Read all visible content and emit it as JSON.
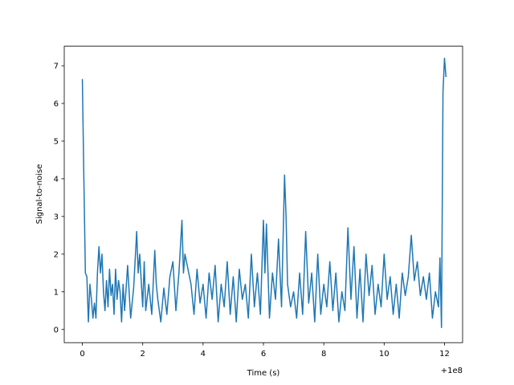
{
  "chart_data": {
    "type": "line",
    "xlabel": "Time (s)",
    "ylabel": "Signal-to-noise",
    "x_offset_label": "+1e8",
    "xlim": [
      -0.6,
      12.6
    ],
    "ylim": [
      -0.35,
      7.52
    ],
    "xticks": [
      0,
      2,
      4,
      6,
      8,
      10,
      12
    ],
    "yticks": [
      0,
      1,
      2,
      3,
      4,
      5,
      6,
      7
    ],
    "series": [
      {
        "color": "#1f77b4",
        "x": [
          0,
          0.05,
          0.1,
          0.15,
          0.2,
          0.25,
          0.3,
          0.35,
          0.4,
          0.45,
          0.5,
          0.55,
          0.6,
          0.65,
          0.7,
          0.75,
          0.8,
          0.85,
          0.9,
          0.95,
          1.0,
          1.05,
          1.1,
          1.15,
          1.2,
          1.25,
          1.3,
          1.35,
          1.4,
          1.5,
          1.6,
          1.7,
          1.8,
          1.85,
          1.9,
          2.0,
          2.05,
          2.1,
          2.2,
          2.3,
          2.4,
          2.45,
          2.5,
          2.6,
          2.7,
          2.8,
          2.9,
          3.0,
          3.1,
          3.2,
          3.3,
          3.35,
          3.4,
          3.5,
          3.6,
          3.7,
          3.8,
          3.9,
          4.0,
          4.1,
          4.2,
          4.3,
          4.4,
          4.5,
          4.6,
          4.7,
          4.8,
          4.9,
          5.0,
          5.1,
          5.2,
          5.3,
          5.4,
          5.5,
          5.6,
          5.7,
          5.8,
          5.9,
          6.0,
          6.05,
          6.1,
          6.2,
          6.3,
          6.4,
          6.5,
          6.6,
          6.7,
          6.75,
          6.8,
          6.9,
          7.0,
          7.1,
          7.2,
          7.3,
          7.4,
          7.5,
          7.6,
          7.7,
          7.8,
          7.9,
          8.0,
          8.1,
          8.2,
          8.3,
          8.4,
          8.5,
          8.6,
          8.7,
          8.8,
          8.9,
          9.0,
          9.1,
          9.2,
          9.3,
          9.4,
          9.5,
          9.6,
          9.7,
          9.8,
          9.9,
          10.0,
          10.1,
          10.2,
          10.3,
          10.4,
          10.5,
          10.6,
          10.7,
          10.8,
          10.9,
          11.0,
          11.1,
          11.2,
          11.3,
          11.4,
          11.5,
          11.6,
          11.7,
          11.8,
          11.85,
          11.9,
          11.95,
          12.0,
          12.05
        ],
        "values": [
          6.65,
          4,
          1.5,
          1.4,
          0.2,
          1.2,
          0.8,
          0.3,
          0.7,
          0.3,
          1.5,
          2.2,
          1.5,
          2.0,
          1.0,
          0.5,
          1.3,
          0.6,
          1.6,
          0.9,
          1.2,
          0.4,
          1.6,
          0.8,
          1.3,
          1.0,
          0.2,
          1.2,
          0.5,
          1.7,
          0.3,
          1.1,
          2.6,
          1.5,
          2.0,
          0.6,
          1.8,
          0.5,
          1.2,
          0.4,
          2.1,
          1.2,
          0.8,
          0.2,
          1.1,
          0.4,
          1.4,
          1.8,
          0.5,
          1.5,
          2.9,
          1.5,
          2.0,
          1.6,
          1.2,
          0.4,
          1.6,
          0.7,
          1.2,
          0.3,
          1.5,
          0.8,
          1.7,
          0.2,
          1.2,
          0.6,
          1.8,
          0.4,
          1.4,
          0.2,
          1.6,
          0.8,
          1.2,
          0.3,
          2.0,
          0.6,
          1.5,
          0.4,
          2.9,
          1.5,
          2.8,
          0.3,
          1.5,
          0.8,
          2.4,
          0.6,
          4.1,
          3.0,
          1.2,
          0.6,
          1.0,
          0.3,
          1.5,
          0.4,
          2.6,
          0.7,
          1.5,
          0.2,
          2.0,
          0.4,
          1.2,
          0.6,
          1.8,
          0.5,
          1.5,
          0.2,
          1.0,
          0.5,
          2.7,
          0.8,
          2.2,
          0.3,
          1.6,
          0.2,
          2.0,
          0.9,
          1.7,
          0.4,
          1.2,
          0.6,
          2.0,
          0.8,
          1.4,
          0.4,
          1.2,
          0.3,
          1.5,
          0.9,
          1.4,
          2.5,
          1.3,
          1.8,
          0.9,
          1.4,
          0.8,
          1.5,
          0.3,
          1.0,
          0.6,
          1.9,
          0.05,
          6.3,
          7.2,
          6.7
        ]
      }
    ]
  }
}
